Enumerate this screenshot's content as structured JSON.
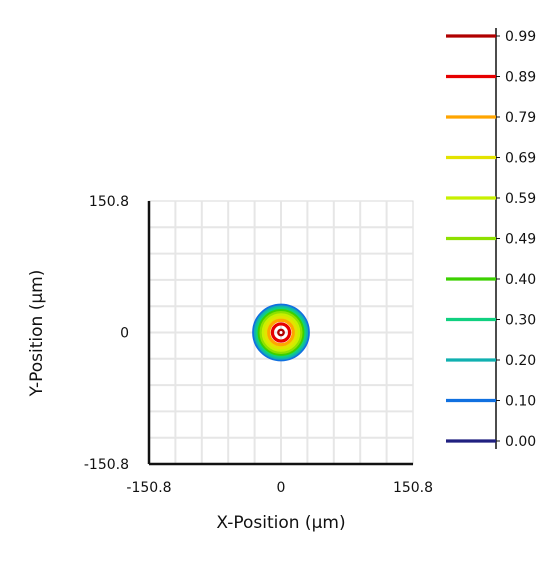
{
  "chart_data": {
    "type": "contour",
    "xlabel": "X-Position (µm)",
    "ylabel": "Y-Position (µm)",
    "xlim": [
      -150.8,
      150.8
    ],
    "ylim": [
      -150.8,
      150.8
    ],
    "x_ticks": [
      "-150.8",
      "0",
      "150.8"
    ],
    "y_ticks": [
      "150.8",
      "0",
      "-150.8"
    ],
    "grid": true,
    "legend": {
      "placement": "right",
      "levels": [
        {
          "label": "0.99",
          "value": 0.99,
          "color": "#b00000"
        },
        {
          "label": "0.89",
          "value": 0.89,
          "color": "#e60000"
        },
        {
          "label": "0.79",
          "value": 0.79,
          "color": "#ffa500"
        },
        {
          "label": "0.69",
          "value": 0.69,
          "color": "#e3e300"
        },
        {
          "label": "0.59",
          "value": 0.59,
          "color": "#c8f000"
        },
        {
          "label": "0.49",
          "value": 0.49,
          "color": "#8ee000"
        },
        {
          "label": "0.40",
          "value": 0.4,
          "color": "#3cd000"
        },
        {
          "label": "0.30",
          "value": 0.3,
          "color": "#10d080"
        },
        {
          "label": "0.20",
          "value": 0.2,
          "color": "#10b0b0"
        },
        {
          "label": "0.10",
          "value": 0.1,
          "color": "#1070e0"
        },
        {
          "label": "0.00",
          "value": 0.0,
          "color": "#202080"
        }
      ]
    },
    "spot": {
      "center": [
        0,
        0
      ],
      "radius_um": 15
    }
  }
}
